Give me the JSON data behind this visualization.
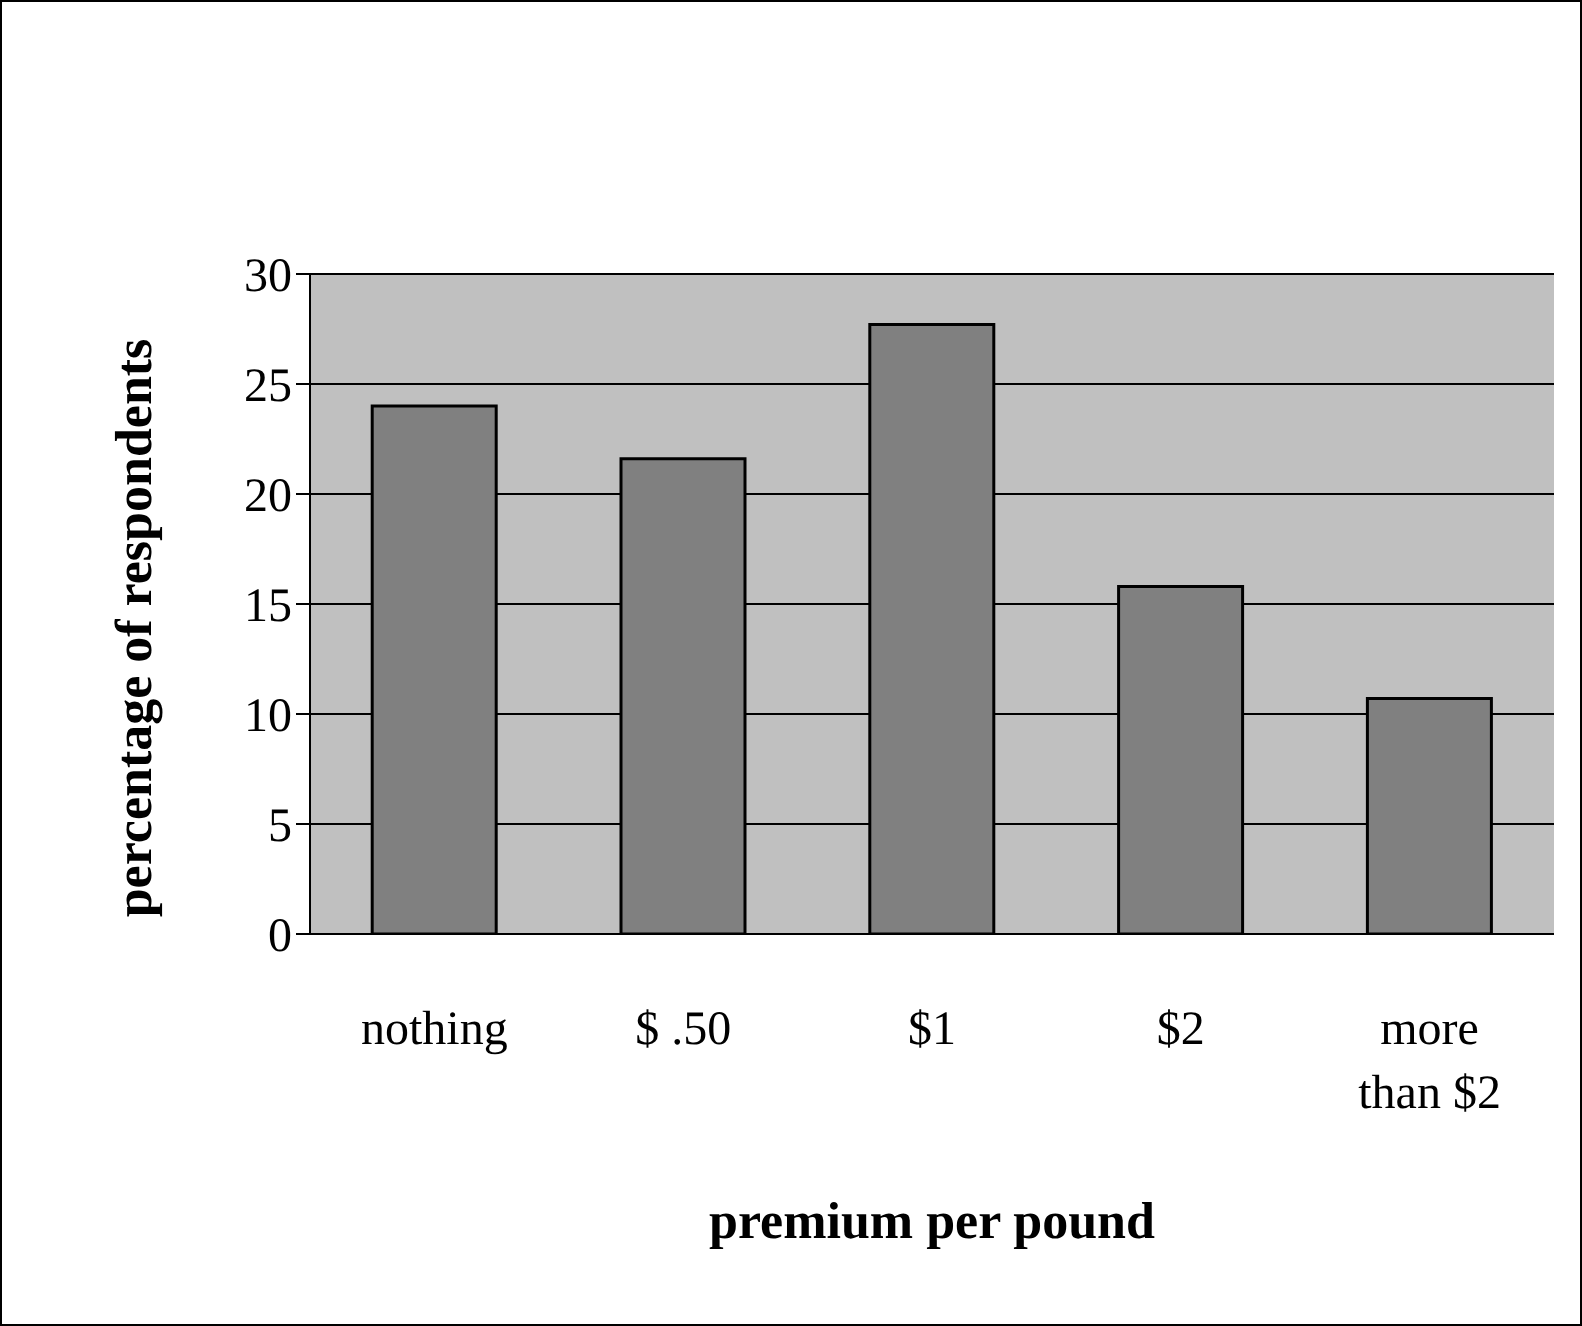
{
  "chart_data": {
    "type": "bar",
    "xlabel": "premium per pound",
    "ylabel": "percentage of respondents",
    "categories": [
      "nothing",
      "$ .50",
      "$1",
      "$2",
      "more than $2"
    ],
    "values": [
      24,
      21.6,
      27.7,
      15.8,
      10.7
    ],
    "color": "#808080",
    "ylim": [
      0,
      30
    ],
    "yticks": [
      0,
      5,
      10,
      15,
      20,
      25,
      30
    ],
    "grid": "y"
  }
}
